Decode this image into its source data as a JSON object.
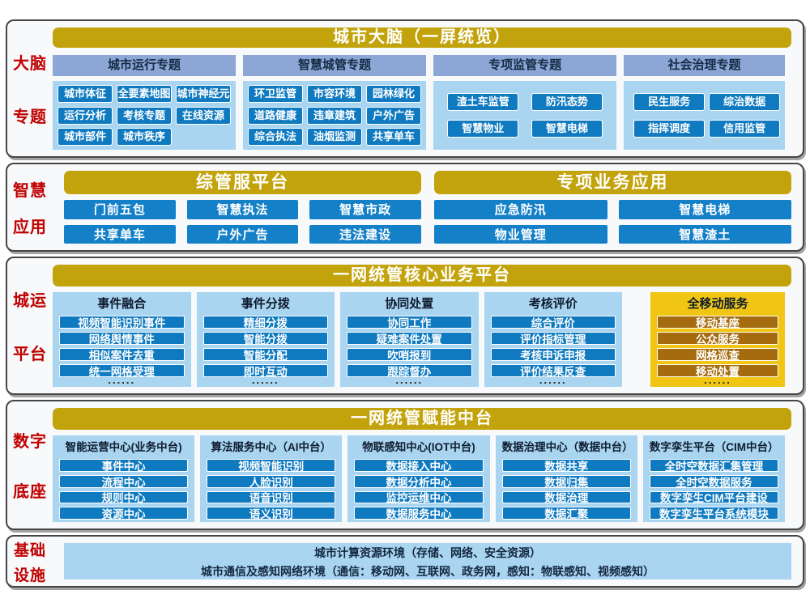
{
  "palette": {
    "gold": "#C3A30B",
    "yellow": "#F0C513",
    "brown": "#A56C0F",
    "blue": "#0F7AC0",
    "light_blue": "#A9D5F1",
    "header_blue": "#8CA6D6",
    "red": "#C00000"
  },
  "brain": {
    "side_label": [
      "大脑",
      "专题"
    ],
    "title": "城市大脑（一屏统览）",
    "columns": [
      {
        "header": "城市运行专题",
        "items": [
          "城市体征",
          "全要素地图",
          "城市神经元",
          "运行分析",
          "考核专题",
          "在线资源",
          "城市部件",
          "城市秩序"
        ]
      },
      {
        "header": "智慧城管专题",
        "items": [
          "环卫监管",
          "市容环境",
          "园林绿化",
          "道路健康",
          "违章建筑",
          "户外广告",
          "综合执法",
          "油烟监测",
          "共享单车"
        ]
      },
      {
        "header": "专项监管专题",
        "items": [
          "渣土车监管",
          "防汛态势",
          "智慧物业",
          "智慧电梯"
        ]
      },
      {
        "header": "社会治理专题",
        "items": [
          "民生服务",
          "综治数据",
          "指挥调度",
          "信用监管"
        ]
      }
    ]
  },
  "apps": {
    "side_label": [
      "智慧",
      "应用"
    ],
    "groups": [
      {
        "title": "综管服平台",
        "items": [
          "门前五包",
          "智慧执法",
          "智慧市政",
          "共享单车",
          "户外广告",
          "违法建设"
        ]
      },
      {
        "title": "专项业务应用",
        "items": [
          "应急防汛",
          "智慧电梯",
          "物业管理",
          "智慧渣土"
        ]
      }
    ]
  },
  "core": {
    "side_label": [
      "城运",
      "平台"
    ],
    "title": "一网统管核心业务平台",
    "ellipsis": "......",
    "columns": [
      {
        "header": "事件融合",
        "items": [
          "视频智能识别事件",
          "网络舆情事件",
          "相似案件去重",
          "统一网格受理"
        ]
      },
      {
        "header": "事件分拨",
        "items": [
          "精细分拨",
          "智能分拨",
          "智能分配",
          "即时互动"
        ]
      },
      {
        "header": "协同处置",
        "items": [
          "协同工作",
          "疑难案件处置",
          "吹哨报到",
          "跟踪督办"
        ]
      },
      {
        "header": "考核评价",
        "items": [
          "综合评价",
          "评价指标管理",
          "考核申诉申报",
          "评价结果反查"
        ]
      },
      {
        "header": "全移动服务",
        "items": [
          "移动基座",
          "公众服务",
          "网格巡查",
          "移动处置"
        ]
      }
    ]
  },
  "digital": {
    "side_label": [
      "数字",
      "底座"
    ],
    "title": "一网统管赋能中台",
    "columns": [
      {
        "header": "智能运营中心(业务中台)",
        "items": [
          "事件中心",
          "流程中心",
          "规则中心",
          "资源中心"
        ]
      },
      {
        "header": "算法服务中心（AI中台）",
        "items": [
          "视频智能识别",
          "人脸识别",
          "语音识别",
          "语义识别"
        ]
      },
      {
        "header": "物联感知中心(IOT中台)",
        "items": [
          "数据接入中心",
          "数据分析中心",
          "监控运维中心",
          "数据服务中心"
        ]
      },
      {
        "header": "数据治理中心（数据中台）",
        "items": [
          "数据共享",
          "数据归集",
          "数据治理",
          "数据汇聚"
        ]
      },
      {
        "header": "数字孪生平台（CIM中台）",
        "items": [
          "全时空数据汇集管理",
          "全时空数据服务",
          "数字孪生CIM平台建设",
          "数字孪生平台系统模块"
        ]
      }
    ]
  },
  "infra": {
    "side_label": [
      "基础",
      "设施"
    ],
    "rows": [
      "城市计算资源环境（存储、网络、安全资源）",
      "城市通信及感知网络环境（通信：移动网、互联网、政务网，感知：物联感知、视频感知）"
    ]
  }
}
